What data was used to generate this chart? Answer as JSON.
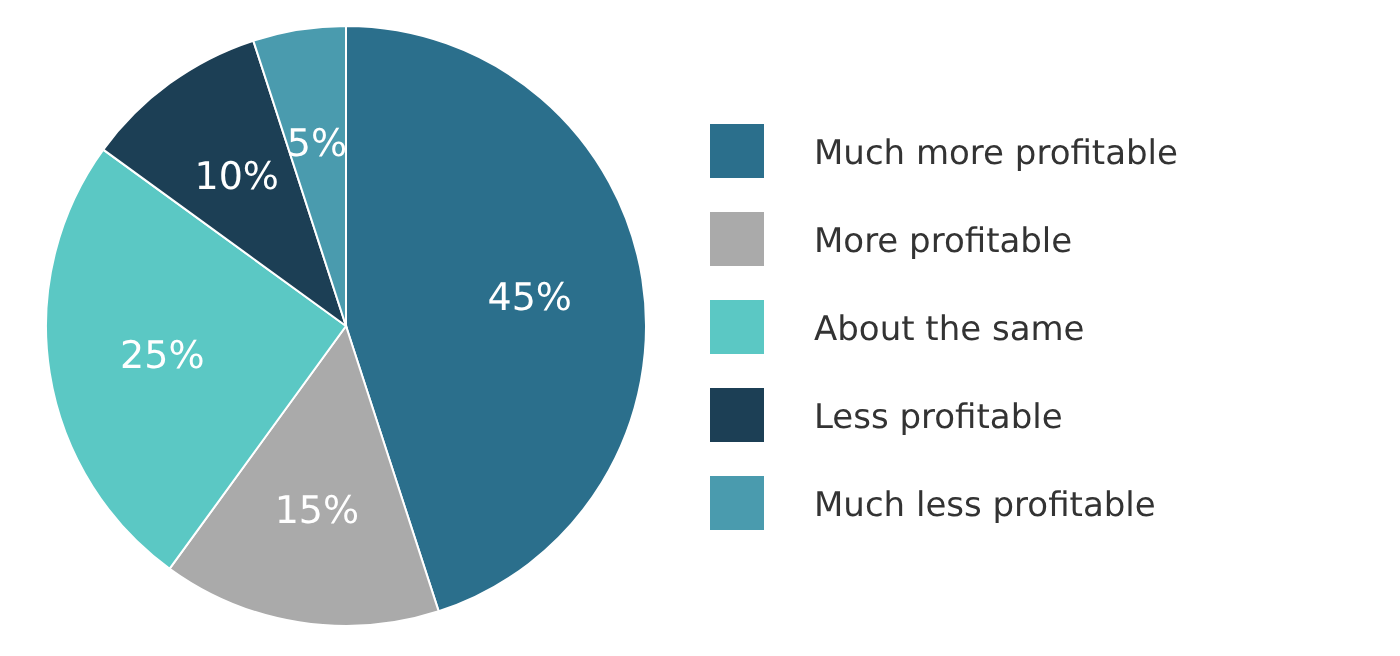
{
  "chart_data": {
    "type": "pie",
    "categories": [
      "Much more profitable",
      "More profitable",
      "About the same",
      "Less profitable",
      "Much less profitable"
    ],
    "values": [
      45,
      15,
      25,
      10,
      5
    ],
    "colors": [
      "#2b6f8c",
      "#aaaaaa",
      "#5bc8c4",
      "#1c3f55",
      "#4a9bae"
    ],
    "value_labels": [
      "45%",
      "15%",
      "25%",
      "10%",
      "5%"
    ],
    "legend": "right"
  }
}
